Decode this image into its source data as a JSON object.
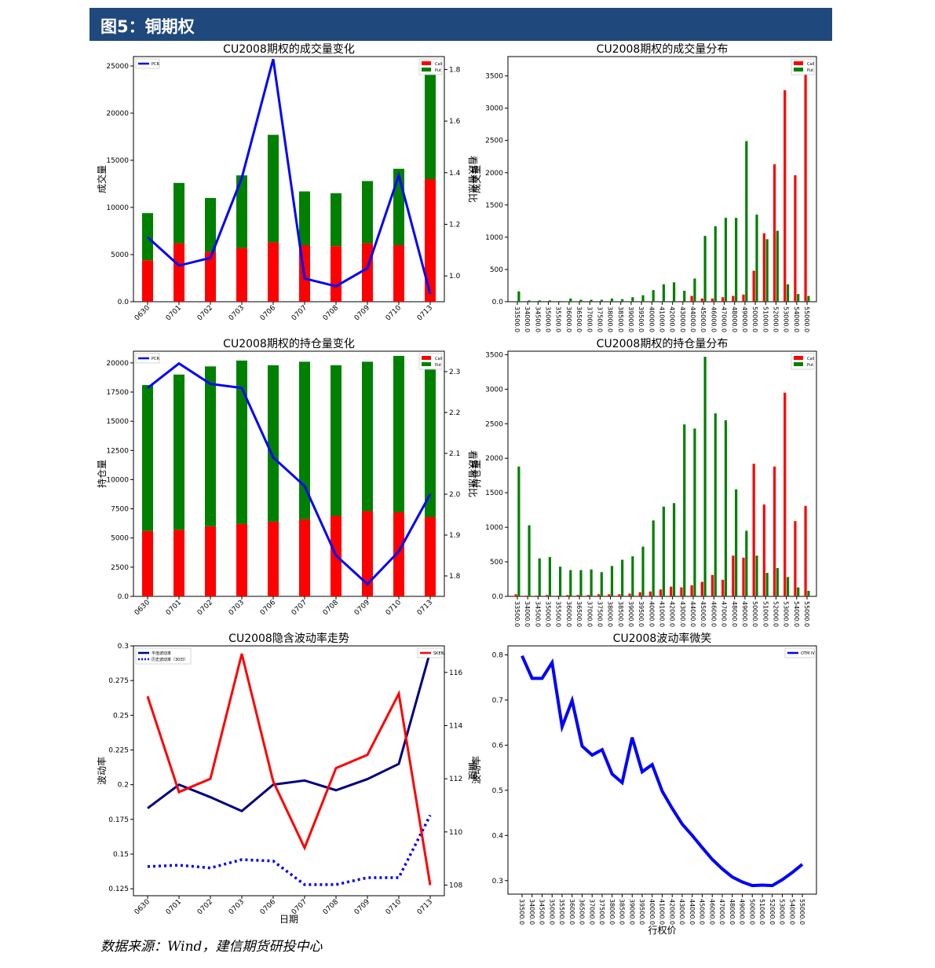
{
  "header": {
    "title": "图5：铜期权"
  },
  "source": "数据来源：Wind，建信期货研投中心",
  "colors": {
    "call": "#ff0000",
    "put": "#008000",
    "pcr": "#0000ff",
    "hv": "#000080",
    "skew": "#ff0000",
    "iv": "#0000ff",
    "header": "#1f497d"
  },
  "chart_data": [
    {
      "id": "volume-change",
      "type": "bar",
      "title": "CU2008期权的成交量变化",
      "stacked": true,
      "categories": [
        "0630",
        "0701",
        "0702",
        "0703",
        "0706",
        "0707",
        "0708",
        "0709",
        "0710",
        "0713"
      ],
      "series": [
        {
          "name": "Call",
          "axis": "left",
          "values": [
            4400,
            6200,
            5300,
            5700,
            6300,
            6000,
            5900,
            6200,
            6000,
            13000
          ]
        },
        {
          "name": "Put",
          "axis": "left",
          "values": [
            5000,
            6400,
            5700,
            7700,
            11400,
            5700,
            5600,
            6600,
            8100,
            12000
          ]
        },
        {
          "name": "PCR",
          "type": "line",
          "axis": "right",
          "values": [
            1.15,
            1.04,
            1.07,
            1.38,
            1.84,
            0.99,
            0.96,
            1.03,
            1.39,
            0.93
          ]
        }
      ],
      "ylabel": "成交量",
      "ylabel_right": "看跌看涨比",
      "ylim": [
        0,
        26000
      ],
      "ylim_right": [
        0.9,
        1.85
      ],
      "yticks": [
        0,
        5000,
        10000,
        15000,
        20000,
        25000
      ],
      "yticks_right": [
        1.0,
        1.2,
        1.4,
        1.6,
        1.8
      ],
      "legend": [
        "Call",
        "Put",
        "PCR"
      ]
    },
    {
      "id": "volume-distribution",
      "type": "bar",
      "title": "CU2008期权的成交量分布",
      "categories": [
        "33500.0",
        "34000.0",
        "34500.0",
        "35000.0",
        "35500.0",
        "36000.0",
        "36500.0",
        "37000.0",
        "37500.0",
        "38000.0",
        "38500.0",
        "39000.0",
        "39500.0",
        "40000.0",
        "41000.0",
        "42000.0",
        "43000.0",
        "44000.0",
        "45000.0",
        "46000.0",
        "47000.0",
        "48000.0",
        "49000.0",
        "50000.0",
        "51000.0",
        "52000.0",
        "53000.0",
        "54000.0",
        "55000.0"
      ],
      "series": [
        {
          "name": "Call",
          "values": [
            0,
            0,
            0,
            0,
            0,
            0,
            0,
            0,
            0,
            0,
            0,
            0,
            0,
            0,
            0,
            0,
            10,
            90,
            50,
            50,
            70,
            90,
            110,
            480,
            1060,
            2130,
            3280,
            1960,
            3700
          ]
        },
        {
          "name": "Put",
          "values": [
            160,
            20,
            20,
            20,
            10,
            50,
            30,
            30,
            30,
            50,
            40,
            70,
            100,
            180,
            270,
            300,
            170,
            360,
            1020,
            1170,
            1300,
            1300,
            2490,
            1350,
            970,
            1100,
            270,
            120,
            90
          ]
        }
      ],
      "ylabel": "成交量",
      "ylim": [
        0,
        3800
      ],
      "yticks": [
        0,
        500,
        1000,
        1500,
        2000,
        2500,
        3000,
        3500
      ],
      "legend": [
        "Call",
        "Put"
      ]
    },
    {
      "id": "oi-change",
      "type": "bar",
      "title": "CU2008期权的持仓量变化",
      "stacked": true,
      "categories": [
        "0630",
        "0701",
        "0702",
        "0703",
        "0706",
        "0707",
        "0708",
        "0709",
        "0710",
        "0713"
      ],
      "series": [
        {
          "name": "Call",
          "axis": "left",
          "values": [
            5600,
            5700,
            6000,
            6200,
            6400,
            6600,
            6900,
            7300,
            7200,
            6800
          ]
        },
        {
          "name": "Put",
          "axis": "left",
          "values": [
            12500,
            13300,
            13700,
            14000,
            13400,
            13500,
            12900,
            12800,
            13400,
            13400
          ]
        },
        {
          "name": "PCR",
          "type": "line",
          "axis": "right",
          "values": [
            2.26,
            2.32,
            2.27,
            2.26,
            2.09,
            2.02,
            1.85,
            1.78,
            1.86,
            2.0
          ]
        }
      ],
      "ylabel": "持仓量",
      "ylabel_right": "看跌看涨比",
      "ylim": [
        0,
        21000
      ],
      "ylim_right": [
        1.75,
        2.35
      ],
      "yticks": [
        0,
        2500,
        5000,
        7500,
        10000,
        12500,
        15000,
        17500,
        20000
      ],
      "yticks_right": [
        1.8,
        1.9,
        2.0,
        2.1,
        2.2,
        2.3
      ],
      "legend": [
        "Call",
        "Put",
        "PCR"
      ]
    },
    {
      "id": "oi-distribution",
      "type": "bar",
      "title": "CU2008期权的持仓量分布",
      "categories": [
        "33500.0",
        "34000.0",
        "34500.0",
        "35000.0",
        "35500.0",
        "36000.0",
        "36500.0",
        "37000.0",
        "37500.0",
        "38000.0",
        "38500.0",
        "39000.0",
        "39500.0",
        "40000.0",
        "41000.0",
        "42000.0",
        "43000.0",
        "44000.0",
        "45000.0",
        "46000.0",
        "47000.0",
        "48000.0",
        "49000.0",
        "50000.0",
        "51000.0",
        "52000.0",
        "53000.0",
        "54000.0",
        "55000.0"
      ],
      "series": [
        {
          "name": "Call",
          "values": [
            30,
            10,
            10,
            20,
            10,
            20,
            20,
            20,
            30,
            30,
            30,
            40,
            60,
            70,
            100,
            140,
            130,
            160,
            210,
            310,
            240,
            590,
            560,
            1920,
            1330,
            1880,
            2950,
            1090,
            1310
          ]
        },
        {
          "name": "Put",
          "values": [
            1880,
            1030,
            550,
            570,
            430,
            380,
            380,
            390,
            350,
            440,
            530,
            580,
            720,
            1100,
            1300,
            1350,
            2490,
            2430,
            3470,
            2650,
            2550,
            1550,
            950,
            590,
            340,
            410,
            280,
            130,
            80
          ]
        }
      ],
      "ylabel": "持仓量",
      "ylim": [
        0,
        3550
      ],
      "yticks": [
        0,
        500,
        1000,
        1500,
        2000,
        2500,
        3000,
        3500
      ],
      "legend": [
        "Call",
        "Put"
      ]
    },
    {
      "id": "implied-vol-trend",
      "type": "line",
      "title": "CU2008隐含波动率走势",
      "categories": [
        "0630",
        "0701",
        "0702",
        "0703",
        "0706",
        "0707",
        "0708",
        "0709",
        "0710",
        "0713"
      ],
      "series": [
        {
          "name": "平值波动率",
          "axis": "left",
          "style": "solid",
          "values": [
            0.183,
            0.2,
            0.191,
            0.181,
            0.2,
            0.203,
            0.196,
            0.204,
            0.215,
            0.296
          ]
        },
        {
          "name": "历史波动率（30日）",
          "axis": "left",
          "style": "dotted",
          "values": [
            0.141,
            0.142,
            0.14,
            0.146,
            0.145,
            0.128,
            0.128,
            0.133,
            0.133,
            0.178
          ]
        },
        {
          "name": "SKEW",
          "axis": "right",
          "style": "solid",
          "values": [
            115.1,
            111.5,
            112.0,
            116.7,
            111.9,
            109.4,
            112.4,
            112.9,
            115.2,
            108.0
          ]
        }
      ],
      "xlabel": "日期",
      "ylabel": "波动率",
      "ylabel_right": "偏度",
      "ylim": [
        0.12,
        0.3
      ],
      "ylim_right": [
        107.6,
        117.0
      ],
      "yticks": [
        0.125,
        0.15,
        0.175,
        0.2,
        0.225,
        0.25,
        0.275,
        0.3
      ],
      "yticks_right": [
        108,
        110,
        112,
        114,
        116
      ],
      "legend": [
        "平值波动率",
        "历史波动率（30日）",
        "SKEW"
      ]
    },
    {
      "id": "vol-smile",
      "type": "line",
      "title": "CU2008波动率微笑",
      "categories": [
        "33500.0",
        "34000.0",
        "34500.0",
        "35000.0",
        "35500.0",
        "36000.0",
        "36500.0",
        "37000.0",
        "37500.0",
        "38000.0",
        "38500.0",
        "39000.0",
        "39500.0",
        "40000.0",
        "41000.0",
        "42000.0",
        "43000.0",
        "44000.0",
        "45000.0",
        "46000.0",
        "47000.0",
        "48000.0",
        "49000.0",
        "50000.0",
        "51000.0",
        "52000.0",
        "53000.0",
        "54000.0",
        "55000.0"
      ],
      "series": [
        {
          "name": "OTM IV",
          "values": [
            0.798,
            0.748,
            0.748,
            0.783,
            0.641,
            0.699,
            0.598,
            0.578,
            0.59,
            0.536,
            0.517,
            0.617,
            0.541,
            0.557,
            0.498,
            0.46,
            0.425,
            0.4,
            0.373,
            0.347,
            0.326,
            0.308,
            0.297,
            0.289,
            0.29,
            0.289,
            0.302,
            0.318,
            0.336
          ]
        }
      ],
      "xlabel": "行权价",
      "ylabel": "波动率",
      "ylim": [
        0.27,
        0.82
      ],
      "yticks": [
        0.3,
        0.4,
        0.5,
        0.6,
        0.7,
        0.8
      ],
      "legend": [
        "OTM IV"
      ]
    }
  ]
}
